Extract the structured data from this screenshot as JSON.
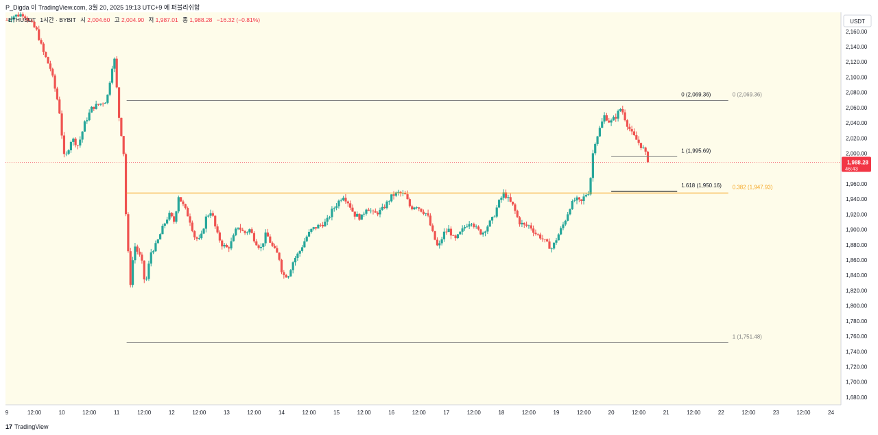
{
  "header": {
    "publish_line": "P_Digda 이 TradingView.com, 3월 20, 2025 19:13 UTC+9 에 퍼블리쉬함"
  },
  "footer": {
    "brand": "TradingView",
    "brand_glyph": "17"
  },
  "colors": {
    "background": "#fefcea",
    "up": "#26a69a",
    "down": "#ef5350",
    "fib_gray": "#808080",
    "fib_orange": "#f5a623",
    "price_badge": "#f23645"
  },
  "chart_data": {
    "type": "candlestick",
    "symbol_line": {
      "symbol": "ETHUSDT",
      "interval": "1시간 · BYBIT",
      "o_label": "시",
      "o_value": "2,004.60",
      "h_label": "고",
      "h_value": "2,004.90",
      "l_label": "저",
      "l_value": "1,987.01",
      "c_label": "종",
      "c_value": "1,988.28",
      "change": "−16.32 (−0.81%)"
    },
    "currency": "USDT",
    "ylim": [
      1670,
      2185
    ],
    "xlim": [
      0,
      15.15
    ],
    "y_ticks": [
      "2,160.00",
      "2,140.00",
      "2,120.00",
      "2,100.00",
      "2,080.00",
      "2,060.00",
      "2,040.00",
      "2,020.00",
      "2,000.00",
      "1,980.00",
      "1,960.00",
      "1,940.00",
      "1,920.00",
      "1,900.00",
      "1,880.00",
      "1,860.00",
      "1,840.00",
      "1,820.00",
      "1,800.00",
      "1,780.00",
      "1,760.00",
      "1,740.00",
      "1,720.00",
      "1,700.00",
      "1,680.00"
    ],
    "x_ticks": [
      {
        "x": 0.0,
        "label": "9"
      },
      {
        "x": 0.5,
        "label": "12:00"
      },
      {
        "x": 1.0,
        "label": "10"
      },
      {
        "x": 1.5,
        "label": "12:00"
      },
      {
        "x": 2.0,
        "label": "11"
      },
      {
        "x": 2.5,
        "label": "12:00"
      },
      {
        "x": 3.0,
        "label": "12"
      },
      {
        "x": 3.5,
        "label": "12:00"
      },
      {
        "x": 4.0,
        "label": "13"
      },
      {
        "x": 4.5,
        "label": "12:00"
      },
      {
        "x": 5.0,
        "label": "14"
      },
      {
        "x": 5.5,
        "label": "12:00"
      },
      {
        "x": 6.0,
        "label": "15"
      },
      {
        "x": 6.5,
        "label": "12:00"
      },
      {
        "x": 7.0,
        "label": "16"
      },
      {
        "x": 7.5,
        "label": "12:00"
      },
      {
        "x": 8.0,
        "label": "17"
      },
      {
        "x": 8.5,
        "label": "12:00"
      },
      {
        "x": 9.0,
        "label": "18"
      },
      {
        "x": 9.5,
        "label": "12:00"
      },
      {
        "x": 10.0,
        "label": "19"
      },
      {
        "x": 10.5,
        "label": "12:00"
      },
      {
        "x": 11.0,
        "label": "20"
      },
      {
        "x": 11.5,
        "label": "12:00"
      },
      {
        "x": 12.0,
        "label": "21"
      },
      {
        "x": 12.5,
        "label": "12:00"
      },
      {
        "x": 13.0,
        "label": "22"
      },
      {
        "x": 13.5,
        "label": "12:00"
      },
      {
        "x": 14.0,
        "label": "23"
      },
      {
        "x": 14.5,
        "label": "12:00"
      },
      {
        "x": 15.0,
        "label": "24"
      }
    ],
    "anchors": [
      [
        0.0,
        2175
      ],
      [
        0.12,
        2180
      ],
      [
        0.3,
        2183
      ],
      [
        0.45,
        2170
      ],
      [
        0.55,
        2160
      ],
      [
        0.65,
        2135
      ],
      [
        0.8,
        2110
      ],
      [
        0.95,
        2060
      ],
      [
        1.05,
        1990
      ],
      [
        1.18,
        2020
      ],
      [
        1.3,
        2010
      ],
      [
        1.42,
        2040
      ],
      [
        1.55,
        2060
      ],
      [
        1.7,
        2065
      ],
      [
        1.82,
        2070
      ],
      [
        1.95,
        2130
      ],
      [
        2.05,
        2040
      ],
      [
        2.12,
        2010
      ],
      [
        2.18,
        1895
      ],
      [
        2.25,
        1830
      ],
      [
        2.32,
        1880
      ],
      [
        2.45,
        1860
      ],
      [
        2.52,
        1825
      ],
      [
        2.62,
        1870
      ],
      [
        2.72,
        1880
      ],
      [
        2.85,
        1905
      ],
      [
        2.95,
        1920
      ],
      [
        3.05,
        1910
      ],
      [
        3.12,
        1945
      ],
      [
        3.22,
        1930
      ],
      [
        3.32,
        1915
      ],
      [
        3.42,
        1890
      ],
      [
        3.52,
        1885
      ],
      [
        3.62,
        1915
      ],
      [
        3.72,
        1925
      ],
      [
        3.82,
        1895
      ],
      [
        3.92,
        1880
      ],
      [
        4.02,
        1875
      ],
      [
        4.1,
        1885
      ],
      [
        4.2,
        1905
      ],
      [
        4.32,
        1895
      ],
      [
        4.42,
        1900
      ],
      [
        4.52,
        1885
      ],
      [
        4.62,
        1875
      ],
      [
        4.72,
        1895
      ],
      [
        4.85,
        1875
      ],
      [
        4.95,
        1865
      ],
      [
        5.02,
        1840
      ],
      [
        5.12,
        1840
      ],
      [
        5.22,
        1860
      ],
      [
        5.32,
        1870
      ],
      [
        5.45,
        1890
      ],
      [
        5.55,
        1900
      ],
      [
        5.68,
        1905
      ],
      [
        5.82,
        1910
      ],
      [
        5.92,
        1925
      ],
      [
        6.02,
        1935
      ],
      [
        6.12,
        1945
      ],
      [
        6.22,
        1935
      ],
      [
        6.32,
        1920
      ],
      [
        6.45,
        1915
      ],
      [
        6.55,
        1930
      ],
      [
        6.68,
        1920
      ],
      [
        6.82,
        1925
      ],
      [
        6.92,
        1935
      ],
      [
        7.02,
        1945
      ],
      [
        7.12,
        1948
      ],
      [
        7.25,
        1945
      ],
      [
        7.35,
        1928
      ],
      [
        7.45,
        1932
      ],
      [
        7.55,
        1925
      ],
      [
        7.65,
        1920
      ],
      [
        7.75,
        1895
      ],
      [
        7.85,
        1875
      ],
      [
        7.95,
        1895
      ],
      [
        8.05,
        1900
      ],
      [
        8.15,
        1885
      ],
      [
        8.25,
        1895
      ],
      [
        8.35,
        1905
      ],
      [
        8.45,
        1912
      ],
      [
        8.55,
        1900
      ],
      [
        8.65,
        1895
      ],
      [
        8.75,
        1905
      ],
      [
        8.85,
        1915
      ],
      [
        8.95,
        1935
      ],
      [
        9.05,
        1948
      ],
      [
        9.12,
        1940
      ],
      [
        9.22,
        1930
      ],
      [
        9.32,
        1910
      ],
      [
        9.42,
        1905
      ],
      [
        9.52,
        1905
      ],
      [
        9.62,
        1895
      ],
      [
        9.72,
        1890
      ],
      [
        9.82,
        1882
      ],
      [
        9.92,
        1875
      ],
      [
        10.05,
        1895
      ],
      [
        10.15,
        1910
      ],
      [
        10.25,
        1930
      ],
      [
        10.35,
        1940
      ],
      [
        10.45,
        1935
      ],
      [
        10.52,
        1945
      ],
      [
        10.6,
        1950
      ],
      [
        10.68,
        2010
      ],
      [
        10.78,
        2030
      ],
      [
        10.88,
        2050
      ],
      [
        10.98,
        2040
      ],
      [
        11.08,
        2048
      ],
      [
        11.18,
        2060
      ],
      [
        11.28,
        2040
      ],
      [
        11.38,
        2025
      ],
      [
        11.5,
        2014
      ],
      [
        11.6,
        2004
      ],
      [
        11.68,
        1988
      ]
    ],
    "fib_major": {
      "x_start": 2.18,
      "x_end": 13.13,
      "levels": [
        {
          "value": 2069.36,
          "label": "0 (2,069.36)",
          "color": "#808080"
        },
        {
          "value": 1947.93,
          "label": "0.382 (1,947.93)",
          "color": "#f5a623"
        },
        {
          "value": 1751.48,
          "label": "1 (1,751.48)",
          "color": "#808080"
        }
      ]
    },
    "fib_minor": {
      "x_start": 11.0,
      "x_end": 12.2,
      "levels": [
        {
          "value": 2069.36,
          "label": "0 (2,069.36)"
        },
        {
          "value": 1995.69,
          "label": "1 (1,995.69)"
        },
        {
          "value": 1950.16,
          "label": "1.618 (1,950.16)"
        }
      ]
    },
    "last_price": {
      "value": 1988.28,
      "label": "1,988.28",
      "countdown": "46:43"
    }
  }
}
